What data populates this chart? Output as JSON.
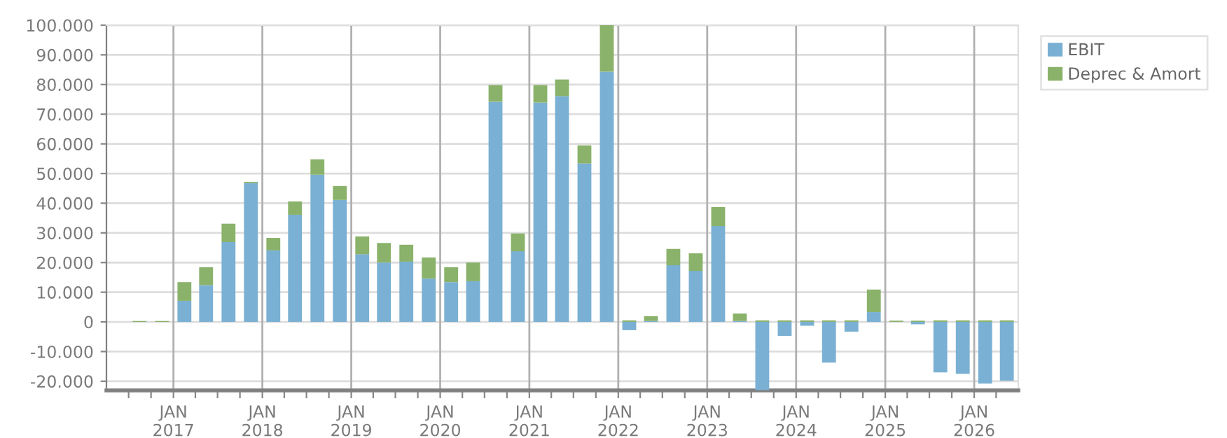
{
  "chart_data": {
    "type": "bar",
    "stacked": true,
    "x": [
      "2016-08-15",
      "2016-11-15",
      "2017-02-15",
      "2017-05-15",
      "2017-08-15",
      "2017-11-15",
      "2018-02-15",
      "2018-05-15",
      "2018-08-15",
      "2018-11-15",
      "2019-02-15",
      "2019-05-15",
      "2019-08-15",
      "2019-11-15",
      "2020-02-15",
      "2020-05-15",
      "2020-08-15",
      "2020-11-15",
      "2021-02-15",
      "2021-05-15",
      "2021-08-15",
      "2021-11-15",
      "2022-02-15",
      "2022-05-15",
      "2022-08-15",
      "2022-11-15",
      "2023-02-15",
      "2023-05-15",
      "2023-08-15",
      "2023-11-15",
      "2024-02-15",
      "2024-05-15",
      "2024-08-15",
      "2024-11-15",
      "2025-02-15",
      "2025-05-15",
      "2025-08-15",
      "2025-11-15",
      "2026-02-15",
      "2026-05-15"
    ],
    "series": [
      {
        "name": "EBIT",
        "color": "#7ab0d3",
        "values": [
          0,
          0,
          7100,
          12400,
          26900,
          46800,
          24100,
          36100,
          49600,
          41100,
          22800,
          20000,
          20300,
          14600,
          13400,
          13700,
          74200,
          23800,
          73900,
          76100,
          53400,
          84300,
          -2800,
          300,
          19100,
          17200,
          32300,
          300,
          -23000,
          -4700,
          -1300,
          -13700,
          -3300,
          3300,
          0,
          -800,
          -17000,
          -17500,
          -20800,
          -19800
        ]
      },
      {
        "name": "Deprec & Amort",
        "color": "#8ab26a",
        "values": [
          300,
          300,
          6300,
          6000,
          6200,
          400,
          4200,
          4500,
          5200,
          4700,
          6000,
          6600,
          5700,
          7100,
          5000,
          6300,
          5600,
          6000,
          5900,
          5600,
          6100,
          15700,
          500,
          1600,
          5500,
          5900,
          6400,
          2500,
          500,
          500,
          500,
          500,
          500,
          7600,
          400,
          400,
          500,
          500,
          500,
          500
        ]
      }
    ],
    "ylim": [
      -23100,
      100000
    ],
    "yticks": [
      {
        "value": -20000,
        "label": "-20.000"
      },
      {
        "value": -10000,
        "label": "-10.000"
      },
      {
        "value": 0,
        "label": "0"
      },
      {
        "value": 10000,
        "label": "10.000"
      },
      {
        "value": 20000,
        "label": "20.000"
      },
      {
        "value": 30000,
        "label": "30.000"
      },
      {
        "value": 40000,
        "label": "40.000"
      },
      {
        "value": 50000,
        "label": "50.000"
      },
      {
        "value": 60000,
        "label": "60.000"
      },
      {
        "value": 70000,
        "label": "70.000"
      },
      {
        "value": 80000,
        "label": "80.000"
      },
      {
        "value": 90000,
        "label": "90.000"
      },
      {
        "value": 100000,
        "label": "100.000"
      }
    ],
    "xlim": [
      "2016-04-01",
      "2026-07-01"
    ],
    "xticks": [
      {
        "value": "2016-07-01",
        "label": null
      },
      {
        "value": "2016-10-01",
        "label": null
      },
      {
        "value": "2017-01-01",
        "label": "JAN\n2017"
      },
      {
        "value": "2017-04-01",
        "label": null
      },
      {
        "value": "2017-07-01",
        "label": null
      },
      {
        "value": "2017-10-01",
        "label": null
      },
      {
        "value": "2018-01-01",
        "label": "JAN\n2018"
      },
      {
        "value": "2018-04-01",
        "label": null
      },
      {
        "value": "2018-07-01",
        "label": null
      },
      {
        "value": "2018-10-01",
        "label": null
      },
      {
        "value": "2019-01-01",
        "label": "JAN\n2019"
      },
      {
        "value": "2019-04-01",
        "label": null
      },
      {
        "value": "2019-07-01",
        "label": null
      },
      {
        "value": "2019-10-01",
        "label": null
      },
      {
        "value": "2020-01-01",
        "label": "JAN\n2020"
      },
      {
        "value": "2020-04-01",
        "label": null
      },
      {
        "value": "2020-07-01",
        "label": null
      },
      {
        "value": "2020-10-01",
        "label": null
      },
      {
        "value": "2021-01-01",
        "label": "JAN\n2021"
      },
      {
        "value": "2021-04-01",
        "label": null
      },
      {
        "value": "2021-07-01",
        "label": null
      },
      {
        "value": "2021-10-01",
        "label": null
      },
      {
        "value": "2022-01-01",
        "label": "JAN\n2022"
      },
      {
        "value": "2022-04-01",
        "label": null
      },
      {
        "value": "2022-07-01",
        "label": null
      },
      {
        "value": "2022-10-01",
        "label": null
      },
      {
        "value": "2023-01-01",
        "label": "JAN\n2023"
      },
      {
        "value": "2023-04-01",
        "label": null
      },
      {
        "value": "2023-07-01",
        "label": null
      },
      {
        "value": "2023-10-01",
        "label": null
      },
      {
        "value": "2024-01-01",
        "label": "JAN\n2024"
      },
      {
        "value": "2024-04-01",
        "label": null
      },
      {
        "value": "2024-07-01",
        "label": null
      },
      {
        "value": "2024-10-01",
        "label": null
      },
      {
        "value": "2025-01-01",
        "label": "JAN\n2025"
      },
      {
        "value": "2025-04-01",
        "label": null
      },
      {
        "value": "2025-07-01",
        "label": null
      },
      {
        "value": "2025-10-01",
        "label": null
      },
      {
        "value": "2026-01-01",
        "label": "JAN\n2026"
      },
      {
        "value": "2026-04-01",
        "label": null
      }
    ],
    "grid": true,
    "legend": "top right"
  }
}
